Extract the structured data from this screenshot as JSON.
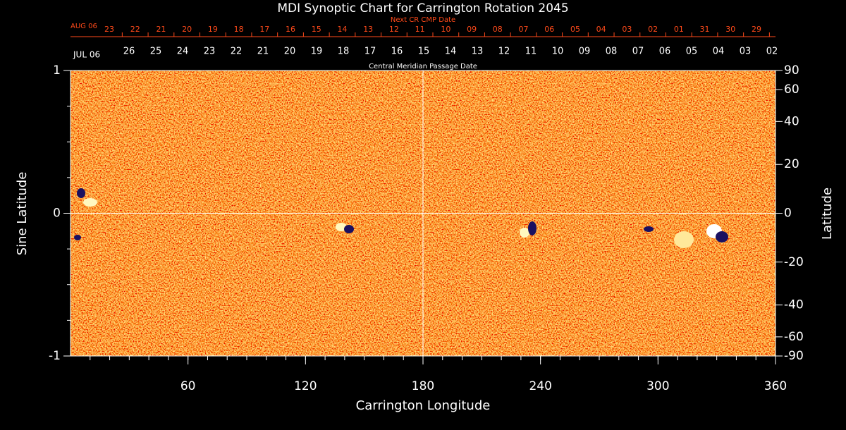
{
  "chart_data": {
    "type": "synoptic-map",
    "title": "MDI Synoptic Chart for Carrington Rotation 2045",
    "x_label": "Carrington Longitude",
    "y_label": "Sine Latitude",
    "y2_label": "Latitude",
    "xlim": [
      0,
      360
    ],
    "xticks": [
      60,
      120,
      180,
      240,
      300,
      360
    ],
    "ylim": [
      -1,
      1
    ],
    "yticks": [
      -1,
      0,
      1
    ],
    "y2lim": [
      -90,
      90
    ],
    "y2scale": "sine",
    "y2ticks": [
      90,
      60,
      40,
      20,
      0,
      -20,
      -40,
      -60,
      -90
    ],
    "guides": {
      "x": 180,
      "y": 0
    },
    "top_axes": [
      {
        "label": "Next CR CMP Date",
        "start": "AUG 06",
        "color": "#ff4a1a",
        "dates": [
          "23",
          "22",
          "21",
          "20",
          "19",
          "18",
          "17",
          "16",
          "15",
          "14",
          "13",
          "12",
          "11",
          "10",
          "09",
          "08",
          "07",
          "06",
          "05",
          "04",
          "03",
          "02",
          "01",
          "31",
          "30",
          "29"
        ]
      },
      {
        "label": "Central Meridian Passage Date",
        "start": "JUL 06",
        "color": "#ffffff",
        "dates": [
          "26",
          "25",
          "24",
          "23",
          "22",
          "21",
          "20",
          "19",
          "18",
          "17",
          "16",
          "15",
          "14",
          "13",
          "12",
          "11",
          "10",
          "09",
          "08",
          "07",
          "06",
          "05",
          "04",
          "03",
          "02"
        ]
      }
    ]
  }
}
